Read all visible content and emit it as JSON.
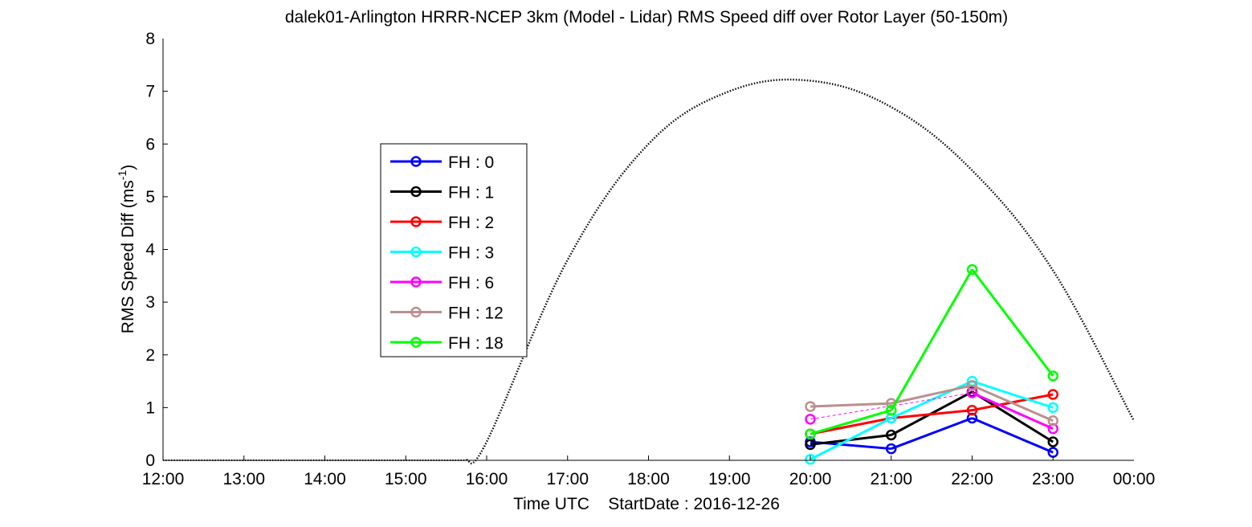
{
  "chart_data": {
    "type": "line",
    "title": "dalek01-Arlington HRRR-NCEP 3km (Model - Lidar) RMS Speed diff over Rotor Layer (50-150m)",
    "xlabel": "Time UTC    StartDate : 2016-12-26",
    "ylabel": "RMS Speed Diff (ms",
    "ylabel_sup": "-1",
    "ylabel_close": ")",
    "xlim": [
      "12:00",
      "00:00"
    ],
    "ylim": [
      0,
      8
    ],
    "x_ticks": [
      "12:00",
      "13:00",
      "14:00",
      "15:00",
      "16:00",
      "17:00",
      "18:00",
      "19:00",
      "20:00",
      "21:00",
      "22:00",
      "23:00",
      "00:00"
    ],
    "y_ticks": [
      "0",
      "1",
      "2",
      "3",
      "4",
      "5",
      "6",
      "7",
      "8"
    ],
    "grid": false,
    "legend_position": "upper-left",
    "categories": [
      "20:00",
      "21:00",
      "22:00",
      "23:00"
    ],
    "series": [
      {
        "name": "FH : 0",
        "color": "#0000ff",
        "values": [
          0.35,
          0.22,
          0.8,
          0.15
        ]
      },
      {
        "name": "FH : 1",
        "color": "#000000",
        "values": [
          0.3,
          0.48,
          1.3,
          0.35
        ]
      },
      {
        "name": "FH : 2",
        "color": "#ff0000",
        "values": [
          0.5,
          0.8,
          0.95,
          1.25
        ]
      },
      {
        "name": "FH : 3",
        "color": "#00ffff",
        "values": [
          0.02,
          0.8,
          1.5,
          1.0
        ]
      },
      {
        "name": "FH : 6",
        "color": "#ff00ff",
        "values": [
          0.78,
          null,
          1.28,
          0.6
        ]
      },
      {
        "name": "FH : 12",
        "color": "#bc8f8f",
        "values": [
          1.02,
          1.08,
          1.42,
          0.75
        ]
      },
      {
        "name": "FH : 18",
        "color": "#00ff00",
        "values": [
          0.5,
          0.95,
          3.62,
          1.6
        ]
      }
    ],
    "reference_curve": {
      "style": "dotted",
      "color": "#000000",
      "x": [
        "12:00",
        "15:45",
        "16:00",
        "17:00",
        "18:00",
        "19:00",
        "20:00",
        "21:00",
        "22:00",
        "23:00",
        "00:00"
      ],
      "values": [
        0,
        0,
        0.35,
        3.8,
        6.0,
        7.0,
        7.2,
        6.7,
        5.5,
        3.6,
        0.75
      ]
    }
  }
}
